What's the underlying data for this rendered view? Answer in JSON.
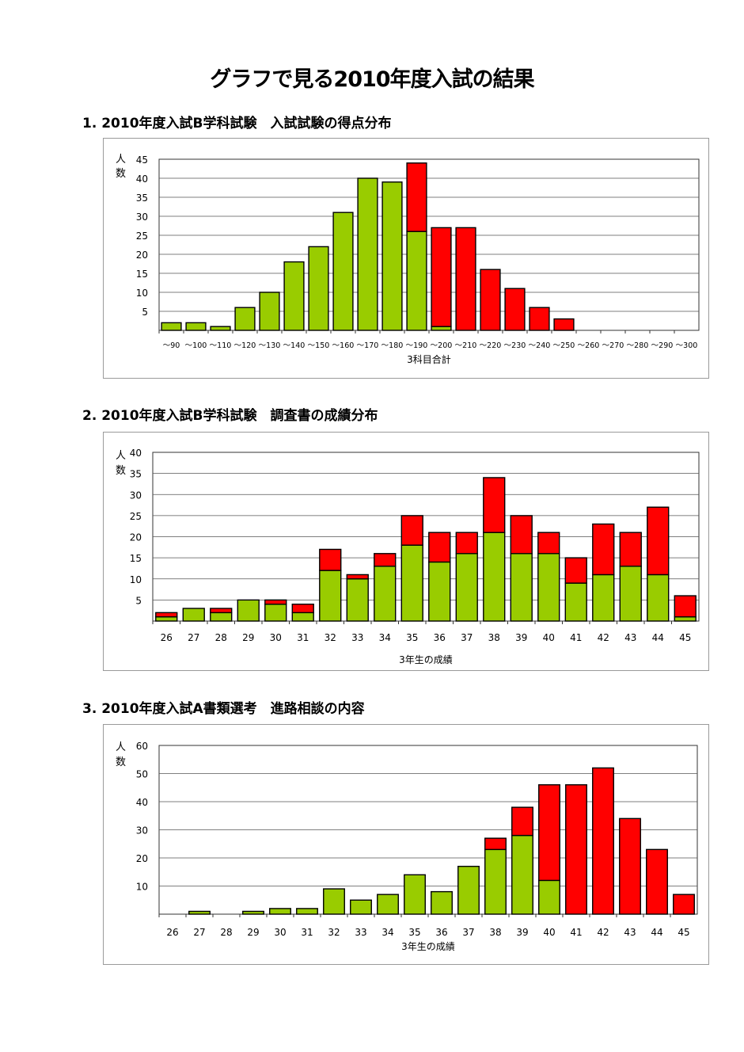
{
  "page": {
    "title": "グラフで見る2010年度入試の結果"
  },
  "chart_data": [
    {
      "type": "bar",
      "stacked": true,
      "section_title": "1. 2010年度入試B学科試験　入試試験の得点分布",
      "ylabel": "人数",
      "xlabel": "3科目合計",
      "ylim": [
        0,
        45
      ],
      "yticks": [
        5,
        10,
        15,
        20,
        25,
        30,
        35,
        40,
        45
      ],
      "categories": [
        "～90",
        "～100",
        "～110",
        "～120",
        "～130",
        "～140",
        "～150",
        "～160",
        "～170",
        "～180",
        "～190",
        "～200",
        "～210",
        "～220",
        "～230",
        "～240",
        "～250",
        "～260",
        "～270",
        "～280",
        "～290",
        "～300"
      ],
      "series": [
        {
          "color": "#99cc00",
          "values": [
            2,
            2,
            1,
            6,
            10,
            18,
            22,
            31,
            40,
            39,
            26,
            1,
            0,
            0,
            0,
            0,
            0,
            0,
            0,
            0,
            0,
            0
          ]
        },
        {
          "color": "#ff0000",
          "values": [
            0,
            0,
            0,
            0,
            0,
            0,
            0,
            0,
            0,
            0,
            18,
            26,
            27,
            16,
            11,
            6,
            3,
            0,
            0,
            0,
            0,
            0
          ]
        }
      ],
      "grid": true,
      "legend": "none"
    },
    {
      "type": "bar",
      "stacked": true,
      "section_title": "2. 2010年度入試B学科試験　調査書の成績分布",
      "ylabel": "人数",
      "xlabel": "3年生の成績",
      "ylim": [
        0,
        40
      ],
      "yticks": [
        5,
        10,
        15,
        20,
        25,
        30,
        35,
        40
      ],
      "categories": [
        "26",
        "27",
        "28",
        "29",
        "30",
        "31",
        "32",
        "33",
        "34",
        "35",
        "36",
        "37",
        "38",
        "39",
        "40",
        "41",
        "42",
        "43",
        "44",
        "45"
      ],
      "series": [
        {
          "color": "#99cc00",
          "values": [
            1,
            3,
            2,
            5,
            4,
            2,
            12,
            10,
            13,
            18,
            14,
            16,
            21,
            16,
            16,
            9,
            11,
            13,
            11,
            1
          ]
        },
        {
          "color": "#ff0000",
          "values": [
            1,
            0,
            1,
            0,
            1,
            2,
            5,
            1,
            3,
            7,
            7,
            5,
            13,
            9,
            5,
            6,
            12,
            8,
            16,
            5
          ]
        }
      ],
      "grid": true,
      "legend": "none"
    },
    {
      "type": "bar",
      "stacked": true,
      "section_title": "3. 2010年度入試A書類選考　進路相談の内容",
      "ylabel": "人数",
      "xlabel": "3年生の成績",
      "ylim": [
        0,
        60
      ],
      "yticks": [
        10,
        20,
        30,
        40,
        50,
        60
      ],
      "categories": [
        "26",
        "27",
        "28",
        "29",
        "30",
        "31",
        "32",
        "33",
        "34",
        "35",
        "36",
        "37",
        "38",
        "39",
        "40",
        "41",
        "42",
        "43",
        "44",
        "45"
      ],
      "series": [
        {
          "color": "#99cc00",
          "values": [
            0,
            1,
            0,
            1,
            2,
            2,
            9,
            5,
            7,
            14,
            8,
            17,
            23,
            28,
            12,
            0,
            0,
            0,
            0,
            0
          ]
        },
        {
          "color": "#ff0000",
          "values": [
            0,
            0,
            0,
            0,
            0,
            0,
            0,
            0,
            0,
            0,
            0,
            0,
            4,
            10,
            34,
            46,
            52,
            34,
            23,
            7
          ]
        }
      ],
      "grid": true,
      "legend": "none"
    }
  ]
}
